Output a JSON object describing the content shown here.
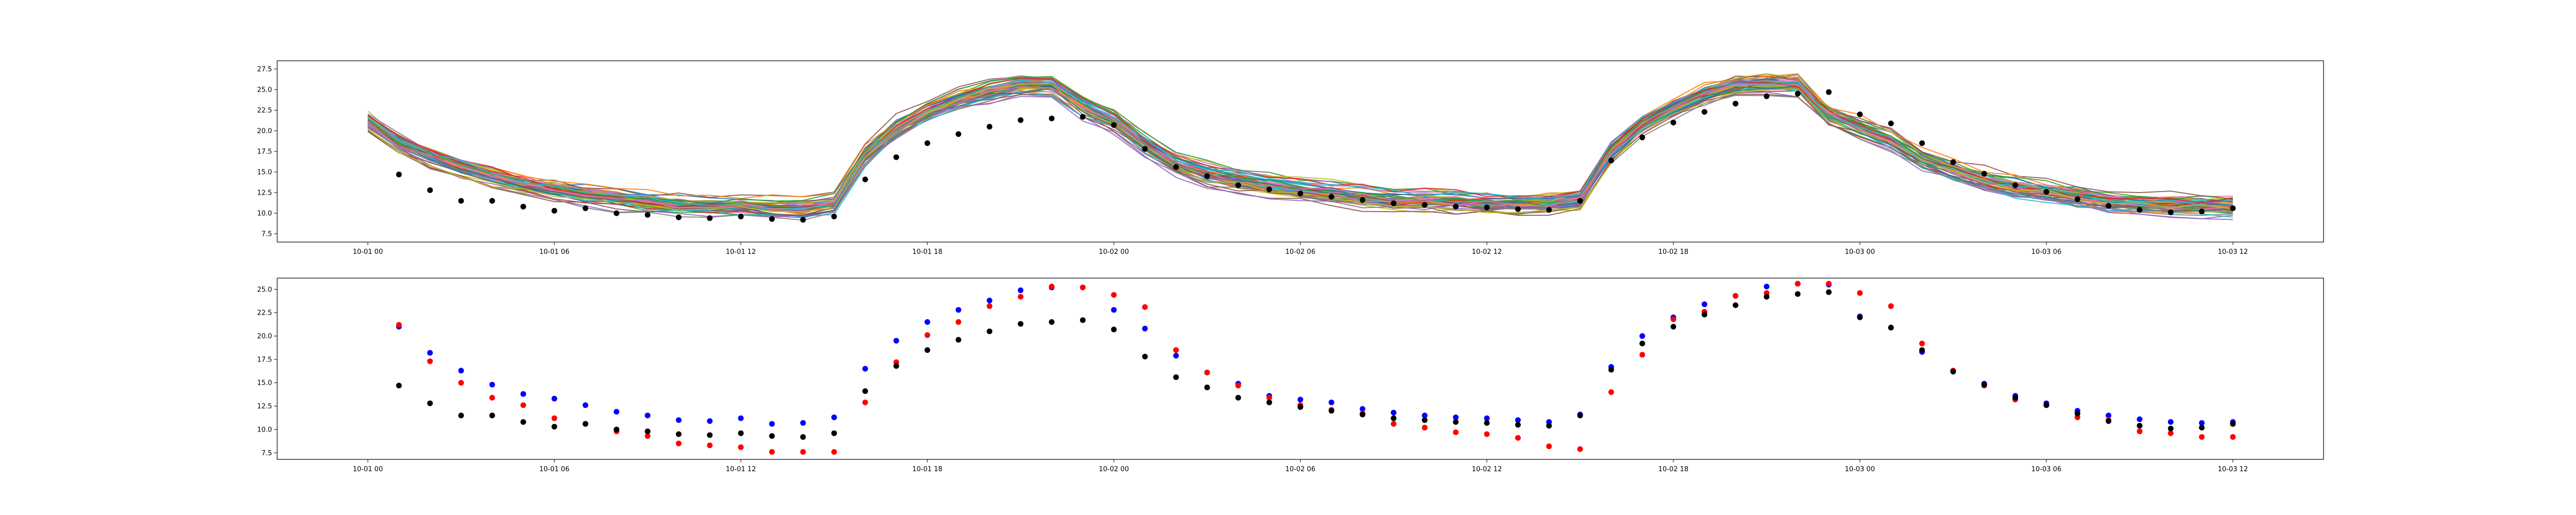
{
  "chart_data": [
    {
      "type": "line",
      "title": "",
      "xlabel": "",
      "ylabel": "",
      "x_range": [
        "2023-10-01 00:00",
        "2023-10-03 12:00"
      ],
      "ylim": [
        6.5,
        28.5
      ],
      "grid": false,
      "x_ticks": [
        {
          "value": "2023-10-01 00:00",
          "label": "10-01 00"
        },
        {
          "value": "2023-10-01 06:00",
          "label": "10-01 06"
        },
        {
          "value": "2023-10-01 12:00",
          "label": "10-01 12"
        },
        {
          "value": "2023-10-01 18:00",
          "label": "10-01 18"
        },
        {
          "value": "2023-10-02 00:00",
          "label": "10-02 00"
        },
        {
          "value": "2023-10-02 06:00",
          "label": "10-02 06"
        },
        {
          "value": "2023-10-02 12:00",
          "label": "10-02 12"
        },
        {
          "value": "2023-10-02 18:00",
          "label": "10-02 18"
        },
        {
          "value": "2023-10-03 00:00",
          "label": "10-03 00"
        },
        {
          "value": "2023-10-03 06:00",
          "label": "10-03 06"
        },
        {
          "value": "2023-10-03 12:00",
          "label": "10-03 12"
        }
      ],
      "y_ticks": [
        {
          "value": 7.5,
          "label": "7.5"
        },
        {
          "value": 10.0,
          "label": "10.0"
        },
        {
          "value": 12.5,
          "label": "12.5"
        },
        {
          "value": 15.0,
          "label": "15.0"
        },
        {
          "value": 17.5,
          "label": "17.5"
        },
        {
          "value": 20.0,
          "label": "20.0"
        },
        {
          "value": 22.5,
          "label": "22.5"
        },
        {
          "value": 25.0,
          "label": "25.0"
        },
        {
          "value": 27.5,
          "label": "27.5"
        }
      ],
      "observed_points": {
        "color": "#000000",
        "x": [
          "2023-10-01 01:00",
          "2023-10-01 02:00",
          "2023-10-01 03:00",
          "2023-10-01 04:00",
          "2023-10-01 05:00",
          "2023-10-01 06:00",
          "2023-10-01 07:00",
          "2023-10-01 08:00",
          "2023-10-01 09:00",
          "2023-10-01 10:00",
          "2023-10-01 11:00",
          "2023-10-01 12:00",
          "2023-10-01 13:00",
          "2023-10-01 14:00",
          "2023-10-01 15:00",
          "2023-10-01 16:00",
          "2023-10-01 17:00",
          "2023-10-01 18:00",
          "2023-10-01 19:00",
          "2023-10-01 20:00",
          "2023-10-01 21:00",
          "2023-10-01 22:00",
          "2023-10-01 23:00",
          "2023-10-02 00:00",
          "2023-10-02 01:00",
          "2023-10-02 02:00",
          "2023-10-02 03:00",
          "2023-10-02 04:00",
          "2023-10-02 05:00",
          "2023-10-02 06:00",
          "2023-10-02 07:00",
          "2023-10-02 08:00",
          "2023-10-02 09:00",
          "2023-10-02 10:00",
          "2023-10-02 11:00",
          "2023-10-02 12:00",
          "2023-10-02 13:00",
          "2023-10-02 14:00",
          "2023-10-02 15:00",
          "2023-10-02 16:00",
          "2023-10-02 17:00",
          "2023-10-02 18:00",
          "2023-10-02 19:00",
          "2023-10-02 20:00",
          "2023-10-02 21:00",
          "2023-10-02 22:00",
          "2023-10-02 23:00",
          "2023-10-03 00:00",
          "2023-10-03 01:00",
          "2023-10-03 02:00",
          "2023-10-03 03:00",
          "2023-10-03 04:00",
          "2023-10-03 05:00",
          "2023-10-03 06:00",
          "2023-10-03 07:00",
          "2023-10-03 08:00",
          "2023-10-03 09:00",
          "2023-10-03 10:00",
          "2023-10-03 11:00",
          "2023-10-03 12:00"
        ],
        "y": [
          14.7,
          12.8,
          11.5,
          11.5,
          10.8,
          10.3,
          10.6,
          10.0,
          9.8,
          9.5,
          9.4,
          9.6,
          9.3,
          9.2,
          9.6,
          14.1,
          16.8,
          18.5,
          19.6,
          20.5,
          21.3,
          21.5,
          21.7,
          20.7,
          17.8,
          15.6,
          14.5,
          13.4,
          12.9,
          12.4,
          12.0,
          11.6,
          11.2,
          11.0,
          10.8,
          10.7,
          10.5,
          10.4,
          11.5,
          16.4,
          19.2,
          21.0,
          22.3,
          23.3,
          24.2,
          24.5,
          24.7,
          22.0,
          20.9,
          18.5,
          16.2,
          14.8,
          13.4,
          12.6,
          11.7,
          10.9,
          10.4,
          10.1,
          10.2,
          10.6
        ]
      },
      "ensemble": {
        "count": 60,
        "colors": [
          "#1f77b4",
          "#ff7f0e",
          "#2ca02c",
          "#d62728",
          "#9467bd",
          "#8c564b",
          "#e377c2",
          "#7f7f7f",
          "#bcbd22",
          "#17becf"
        ],
        "x_hours": [
          0,
          1,
          2,
          3,
          4,
          5,
          6,
          7,
          8,
          9,
          10,
          11,
          12,
          13,
          14,
          15,
          16,
          17,
          18,
          19,
          20,
          21,
          22,
          23,
          24,
          25,
          26,
          27,
          28,
          29,
          30,
          31,
          32,
          33,
          34,
          35,
          36,
          37,
          38,
          39,
          40,
          41,
          42,
          43,
          44,
          45,
          46,
          47,
          48,
          49,
          50,
          51,
          52,
          53,
          54,
          55,
          56,
          57,
          58,
          59,
          60
        ],
        "mean": [
          21.0,
          18.5,
          16.8,
          15.5,
          14.5,
          13.6,
          12.9,
          12.3,
          11.8,
          11.4,
          11.0,
          10.9,
          10.9,
          10.7,
          10.5,
          11.2,
          17.0,
          20.2,
          22.3,
          23.8,
          24.8,
          25.4,
          25.4,
          22.8,
          21.0,
          18.2,
          15.8,
          14.5,
          13.8,
          13.2,
          12.7,
          12.2,
          11.8,
          11.5,
          11.4,
          11.3,
          11.2,
          11.1,
          11.2,
          11.7,
          17.5,
          20.8,
          22.9,
          24.6,
          25.5,
          25.8,
          25.6,
          22.0,
          20.5,
          19.0,
          16.5,
          15.2,
          14.0,
          13.2,
          12.6,
          12.0,
          11.4,
          11.1,
          10.9,
          10.8,
          10.6
        ],
        "spread": 1.6
      }
    },
    {
      "type": "scatter",
      "title": "",
      "xlabel": "",
      "ylabel": "",
      "x_range": [
        "2023-10-01 00:00",
        "2023-10-03 12:00"
      ],
      "ylim": [
        6.8,
        26.2
      ],
      "grid": false,
      "x_ticks": [
        {
          "value": "2023-10-01 00:00",
          "label": "10-01 00"
        },
        {
          "value": "2023-10-01 06:00",
          "label": "10-01 06"
        },
        {
          "value": "2023-10-01 12:00",
          "label": "10-01 12"
        },
        {
          "value": "2023-10-01 18:00",
          "label": "10-01 18"
        },
        {
          "value": "2023-10-02 00:00",
          "label": "10-02 00"
        },
        {
          "value": "2023-10-02 06:00",
          "label": "10-02 06"
        },
        {
          "value": "2023-10-02 12:00",
          "label": "10-02 12"
        },
        {
          "value": "2023-10-02 18:00",
          "label": "10-02 18"
        },
        {
          "value": "2023-10-03 00:00",
          "label": "10-03 00"
        },
        {
          "value": "2023-10-03 06:00",
          "label": "10-03 06"
        },
        {
          "value": "2023-10-03 12:00",
          "label": "10-03 12"
        }
      ],
      "y_ticks": [
        {
          "value": 7.5,
          "label": "7.5"
        },
        {
          "value": 10.0,
          "label": "10.0"
        },
        {
          "value": 12.5,
          "label": "12.5"
        },
        {
          "value": 15.0,
          "label": "15.0"
        },
        {
          "value": 17.5,
          "label": "17.5"
        },
        {
          "value": 20.0,
          "label": "20.0"
        },
        {
          "value": 22.5,
          "label": "22.5"
        },
        {
          "value": 25.0,
          "label": "25.0"
        }
      ],
      "series": [
        {
          "color": "#0000ff",
          "x": [
            "2023-10-01 01:00",
            "2023-10-01 02:00",
            "2023-10-01 03:00",
            "2023-10-01 04:00",
            "2023-10-01 05:00",
            "2023-10-01 06:00",
            "2023-10-01 07:00",
            "2023-10-01 08:00",
            "2023-10-01 09:00",
            "2023-10-01 10:00",
            "2023-10-01 11:00",
            "2023-10-01 12:00",
            "2023-10-01 13:00",
            "2023-10-01 14:00",
            "2023-10-01 15:00",
            "2023-10-01 16:00",
            "2023-10-01 17:00",
            "2023-10-01 18:00",
            "2023-10-01 19:00",
            "2023-10-01 20:00",
            "2023-10-01 21:00",
            "2023-10-01 22:00",
            "2023-10-01 23:00",
            "2023-10-02 00:00",
            "2023-10-02 01:00",
            "2023-10-02 02:00",
            "2023-10-02 03:00",
            "2023-10-02 04:00",
            "2023-10-02 05:00",
            "2023-10-02 06:00",
            "2023-10-02 07:00",
            "2023-10-02 08:00",
            "2023-10-02 09:00",
            "2023-10-02 10:00",
            "2023-10-02 11:00",
            "2023-10-02 12:00",
            "2023-10-02 13:00",
            "2023-10-02 14:00",
            "2023-10-02 15:00",
            "2023-10-02 16:00",
            "2023-10-02 17:00",
            "2023-10-02 18:00",
            "2023-10-02 19:00",
            "2023-10-02 20:00",
            "2023-10-02 21:00",
            "2023-10-02 22:00",
            "2023-10-02 23:00",
            "2023-10-03 00:00",
            "2023-10-03 01:00",
            "2023-10-03 02:00",
            "2023-10-03 03:00",
            "2023-10-03 04:00",
            "2023-10-03 05:00",
            "2023-10-03 06:00",
            "2023-10-03 07:00",
            "2023-10-03 08:00",
            "2023-10-03 09:00",
            "2023-10-03 10:00",
            "2023-10-03 11:00",
            "2023-10-03 12:00"
          ],
          "y": [
            21.0,
            18.2,
            16.3,
            14.8,
            13.8,
            13.3,
            12.6,
            11.9,
            11.5,
            11.0,
            10.9,
            11.2,
            10.6,
            10.7,
            11.3,
            16.5,
            19.5,
            21.5,
            22.8,
            23.8,
            24.9,
            25.2,
            25.2,
            22.8,
            20.8,
            17.9,
            16.1,
            14.9,
            13.6,
            13.2,
            12.9,
            12.2,
            11.8,
            11.5,
            11.3,
            11.2,
            11.0,
            10.8,
            11.6,
            16.7,
            20.0,
            22.0,
            23.4,
            24.3,
            25.3,
            25.6,
            25.5,
            22.1,
            20.9,
            18.3,
            16.2,
            14.9,
            13.6,
            12.8,
            12.0,
            11.5,
            11.1,
            10.8,
            10.7,
            10.8
          ]
        },
        {
          "color": "#ff0000",
          "x": [
            "2023-10-01 01:00",
            "2023-10-01 02:00",
            "2023-10-01 03:00",
            "2023-10-01 04:00",
            "2023-10-01 05:00",
            "2023-10-01 06:00",
            "2023-10-01 07:00",
            "2023-10-01 08:00",
            "2023-10-01 09:00",
            "2023-10-01 10:00",
            "2023-10-01 11:00",
            "2023-10-01 12:00",
            "2023-10-01 13:00",
            "2023-10-01 14:00",
            "2023-10-01 15:00",
            "2023-10-01 16:00",
            "2023-10-01 17:00",
            "2023-10-01 18:00",
            "2023-10-01 19:00",
            "2023-10-01 20:00",
            "2023-10-01 21:00",
            "2023-10-01 22:00",
            "2023-10-01 23:00",
            "2023-10-02 00:00",
            "2023-10-02 01:00",
            "2023-10-02 02:00",
            "2023-10-02 03:00",
            "2023-10-02 04:00",
            "2023-10-02 05:00",
            "2023-10-02 06:00",
            "2023-10-02 07:00",
            "2023-10-02 08:00",
            "2023-10-02 09:00",
            "2023-10-02 10:00",
            "2023-10-02 11:00",
            "2023-10-02 12:00",
            "2023-10-02 13:00",
            "2023-10-02 14:00",
            "2023-10-02 15:00",
            "2023-10-02 16:00",
            "2023-10-02 17:00",
            "2023-10-02 18:00",
            "2023-10-02 19:00",
            "2023-10-02 20:00",
            "2023-10-02 21:00",
            "2023-10-02 22:00",
            "2023-10-02 23:00",
            "2023-10-03 00:00",
            "2023-10-03 01:00",
            "2023-10-03 02:00",
            "2023-10-03 03:00",
            "2023-10-03 04:00",
            "2023-10-03 05:00",
            "2023-10-03 06:00",
            "2023-10-03 07:00",
            "2023-10-03 08:00",
            "2023-10-03 09:00",
            "2023-10-03 10:00",
            "2023-10-03 11:00",
            "2023-10-03 12:00"
          ],
          "y": [
            21.2,
            17.3,
            15.0,
            13.4,
            12.6,
            11.2,
            10.6,
            9.8,
            9.3,
            8.5,
            8.3,
            8.1,
            7.6,
            7.6,
            7.6,
            12.9,
            17.2,
            20.1,
            21.5,
            23.2,
            24.2,
            25.3,
            25.2,
            24.4,
            23.1,
            18.5,
            16.1,
            14.7,
            13.4,
            12.6,
            12.1,
            11.7,
            10.6,
            10.2,
            9.7,
            9.5,
            9.1,
            8.2,
            7.9,
            14.0,
            18.0,
            21.8,
            22.6,
            24.3,
            24.6,
            25.6,
            25.6,
            24.6,
            23.2,
            19.2,
            16.3,
            14.7,
            13.2,
            12.6,
            11.3,
            11.0,
            9.8,
            9.6,
            9.2,
            9.2
          ]
        },
        {
          "color": "#000000",
          "x": [
            "2023-10-01 01:00",
            "2023-10-01 02:00",
            "2023-10-01 03:00",
            "2023-10-01 04:00",
            "2023-10-01 05:00",
            "2023-10-01 06:00",
            "2023-10-01 07:00",
            "2023-10-01 08:00",
            "2023-10-01 09:00",
            "2023-10-01 10:00",
            "2023-10-01 11:00",
            "2023-10-01 12:00",
            "2023-10-01 13:00",
            "2023-10-01 14:00",
            "2023-10-01 15:00",
            "2023-10-01 16:00",
            "2023-10-01 17:00",
            "2023-10-01 18:00",
            "2023-10-01 19:00",
            "2023-10-01 20:00",
            "2023-10-01 21:00",
            "2023-10-01 22:00",
            "2023-10-01 23:00",
            "2023-10-02 00:00",
            "2023-10-02 01:00",
            "2023-10-02 02:00",
            "2023-10-02 03:00",
            "2023-10-02 04:00",
            "2023-10-02 05:00",
            "2023-10-02 06:00",
            "2023-10-02 07:00",
            "2023-10-02 08:00",
            "2023-10-02 09:00",
            "2023-10-02 10:00",
            "2023-10-02 11:00",
            "2023-10-02 12:00",
            "2023-10-02 13:00",
            "2023-10-02 14:00",
            "2023-10-02 15:00",
            "2023-10-02 16:00",
            "2023-10-02 17:00",
            "2023-10-02 18:00",
            "2023-10-02 19:00",
            "2023-10-02 20:00",
            "2023-10-02 21:00",
            "2023-10-02 22:00",
            "2023-10-02 23:00",
            "2023-10-03 00:00",
            "2023-10-03 01:00",
            "2023-10-03 02:00",
            "2023-10-03 03:00",
            "2023-10-03 04:00",
            "2023-10-03 05:00",
            "2023-10-03 06:00",
            "2023-10-03 07:00",
            "2023-10-03 08:00",
            "2023-10-03 09:00",
            "2023-10-03 10:00",
            "2023-10-03 11:00",
            "2023-10-03 12:00"
          ],
          "y": [
            14.7,
            12.8,
            11.5,
            11.5,
            10.8,
            10.3,
            10.6,
            10.0,
            9.8,
            9.5,
            9.4,
            9.6,
            9.3,
            9.2,
            9.6,
            14.1,
            16.8,
            18.5,
            19.6,
            20.5,
            21.3,
            21.5,
            21.7,
            20.7,
            17.8,
            15.6,
            14.5,
            13.4,
            12.9,
            12.4,
            12.0,
            11.6,
            11.2,
            11.0,
            10.8,
            10.7,
            10.5,
            10.4,
            11.5,
            16.4,
            19.2,
            21.0,
            22.3,
            23.3,
            24.2,
            24.5,
            24.7,
            22.0,
            20.9,
            18.5,
            16.2,
            14.8,
            13.4,
            12.6,
            11.7,
            10.9,
            10.4,
            10.1,
            10.2,
            10.6
          ]
        }
      ]
    }
  ]
}
